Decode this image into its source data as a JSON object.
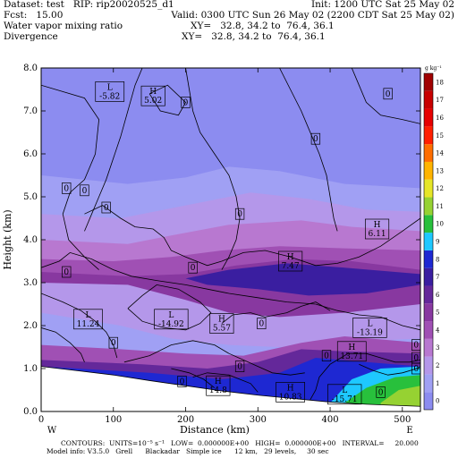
{
  "header": {
    "dataset": "Dataset: test   RIP: rip20020525_d1",
    "init": "Init: 1200 UTC Sat 25 May 02",
    "fcst": "Fcst:   15.00",
    "valid": "Valid: 0300 UTC Sun 26 May 02 (2200 CDT Sat 25 May 02)",
    "field1": "Water vapor mixing ratio",
    "xy1": "XY=   32.8, 34.2 to  76.4, 36.1",
    "field2": "Divergence",
    "xy2": "XY=   32.8, 34.2 to  76.4, 36.1"
  },
  "footer": {
    "line1": "CONTOURS:  UNITS=10⁻⁵ s⁻¹   LOW=  0.000000E+00   HIGH=  0.000000E+00   INTERVAL=     20.000",
    "line2": "Model info: V3.5.0   Grell      Blackadar   Simple ice      12 km,   29 levels,     30 sec"
  },
  "chart_data": {
    "type": "heatmap",
    "xlabel": "Distance (km)",
    "ylabel": "Height (km)",
    "xlim": [
      0,
      525
    ],
    "ylim": [
      0,
      8
    ],
    "x_ticks": [
      0,
      100,
      200,
      300,
      400,
      500
    ],
    "y_ticks": [
      "0.0",
      "1.0",
      "2.0",
      "3.0",
      "4.0",
      "5.0",
      "6.0",
      "7.0",
      "8.0"
    ],
    "x_end_labels": {
      "left": "W",
      "right": "E"
    },
    "colorbar": {
      "unit": "g kg⁻¹",
      "labels": [
        0,
        1,
        2,
        3,
        4,
        5,
        6,
        7,
        8,
        9,
        10,
        11,
        12,
        13,
        14,
        15,
        16,
        17,
        18
      ],
      "colors": [
        "#8c8cf0",
        "#a0a0f4",
        "#b497ea",
        "#b878d0",
        "#a050b4",
        "#8838a0",
        "#64289a",
        "#3a1ea0",
        "#1e28d2",
        "#1ec8ff",
        "#28c03c",
        "#96d232",
        "#e6e628",
        "#ffb400",
        "#ff6e00",
        "#ff1e00",
        "#e60000",
        "#c80000",
        "#a00000"
      ]
    },
    "contour_labels": [
      {
        "text": "L\n-5.82",
        "x": 95,
        "y": 7.45
      },
      {
        "text": "H\n5.02",
        "x": 155,
        "y": 7.35
      },
      {
        "text": "H\n6.11",
        "x": 465,
        "y": 4.25
      },
      {
        "text": "H\n7.47",
        "x": 345,
        "y": 3.5
      },
      {
        "text": "L\n11.24",
        "x": 65,
        "y": 2.15
      },
      {
        "text": "L\n-14.92",
        "x": 180,
        "y": 2.15
      },
      {
        "text": "H\n5.57",
        "x": 250,
        "y": 2.05
      },
      {
        "text": "L\n-13.19",
        "x": 455,
        "y": 1.95
      },
      {
        "text": "H\n13.71",
        "x": 430,
        "y": 1.4
      },
      {
        "text": "H\n14.8",
        "x": 245,
        "y": 0.6
      },
      {
        "text": "H\n10.83",
        "x": 345,
        "y": 0.45
      },
      {
        "text": "L\n-15.71",
        "x": 420,
        "y": 0.4
      },
      {
        "text": "0",
        "x": 200,
        "y": 7.2
      },
      {
        "text": "0",
        "x": 480,
        "y": 7.4
      },
      {
        "text": "0",
        "x": 380,
        "y": 6.35
      },
      {
        "text": "0",
        "x": 35,
        "y": 5.2
      },
      {
        "text": "0",
        "x": 60,
        "y": 5.15
      },
      {
        "text": "0",
        "x": 90,
        "y": 4.75
      },
      {
        "text": "0",
        "x": 275,
        "y": 4.6
      },
      {
        "text": "0",
        "x": 210,
        "y": 3.35
      },
      {
        "text": "0",
        "x": 35,
        "y": 3.25
      },
      {
        "text": "0",
        "x": 100,
        "y": 1.6
      },
      {
        "text": "0",
        "x": 305,
        "y": 2.05
      },
      {
        "text": "0",
        "x": 275,
        "y": 1.05
      },
      {
        "text": "0",
        "x": 195,
        "y": 0.7
      },
      {
        "text": "0",
        "x": 395,
        "y": 1.3
      },
      {
        "text": "0",
        "x": 520,
        "y": 1.55
      },
      {
        "text": "0",
        "x": 520,
        "y": 1.25
      },
      {
        "text": "0",
        "x": 520,
        "y": 1.0
      },
      {
        "text": "0",
        "x": 470,
        "y": 0.45
      }
    ]
  },
  "colors": {
    "terrain": "#ffffff",
    "contour": "#000000",
    "frame": "#000000"
  }
}
